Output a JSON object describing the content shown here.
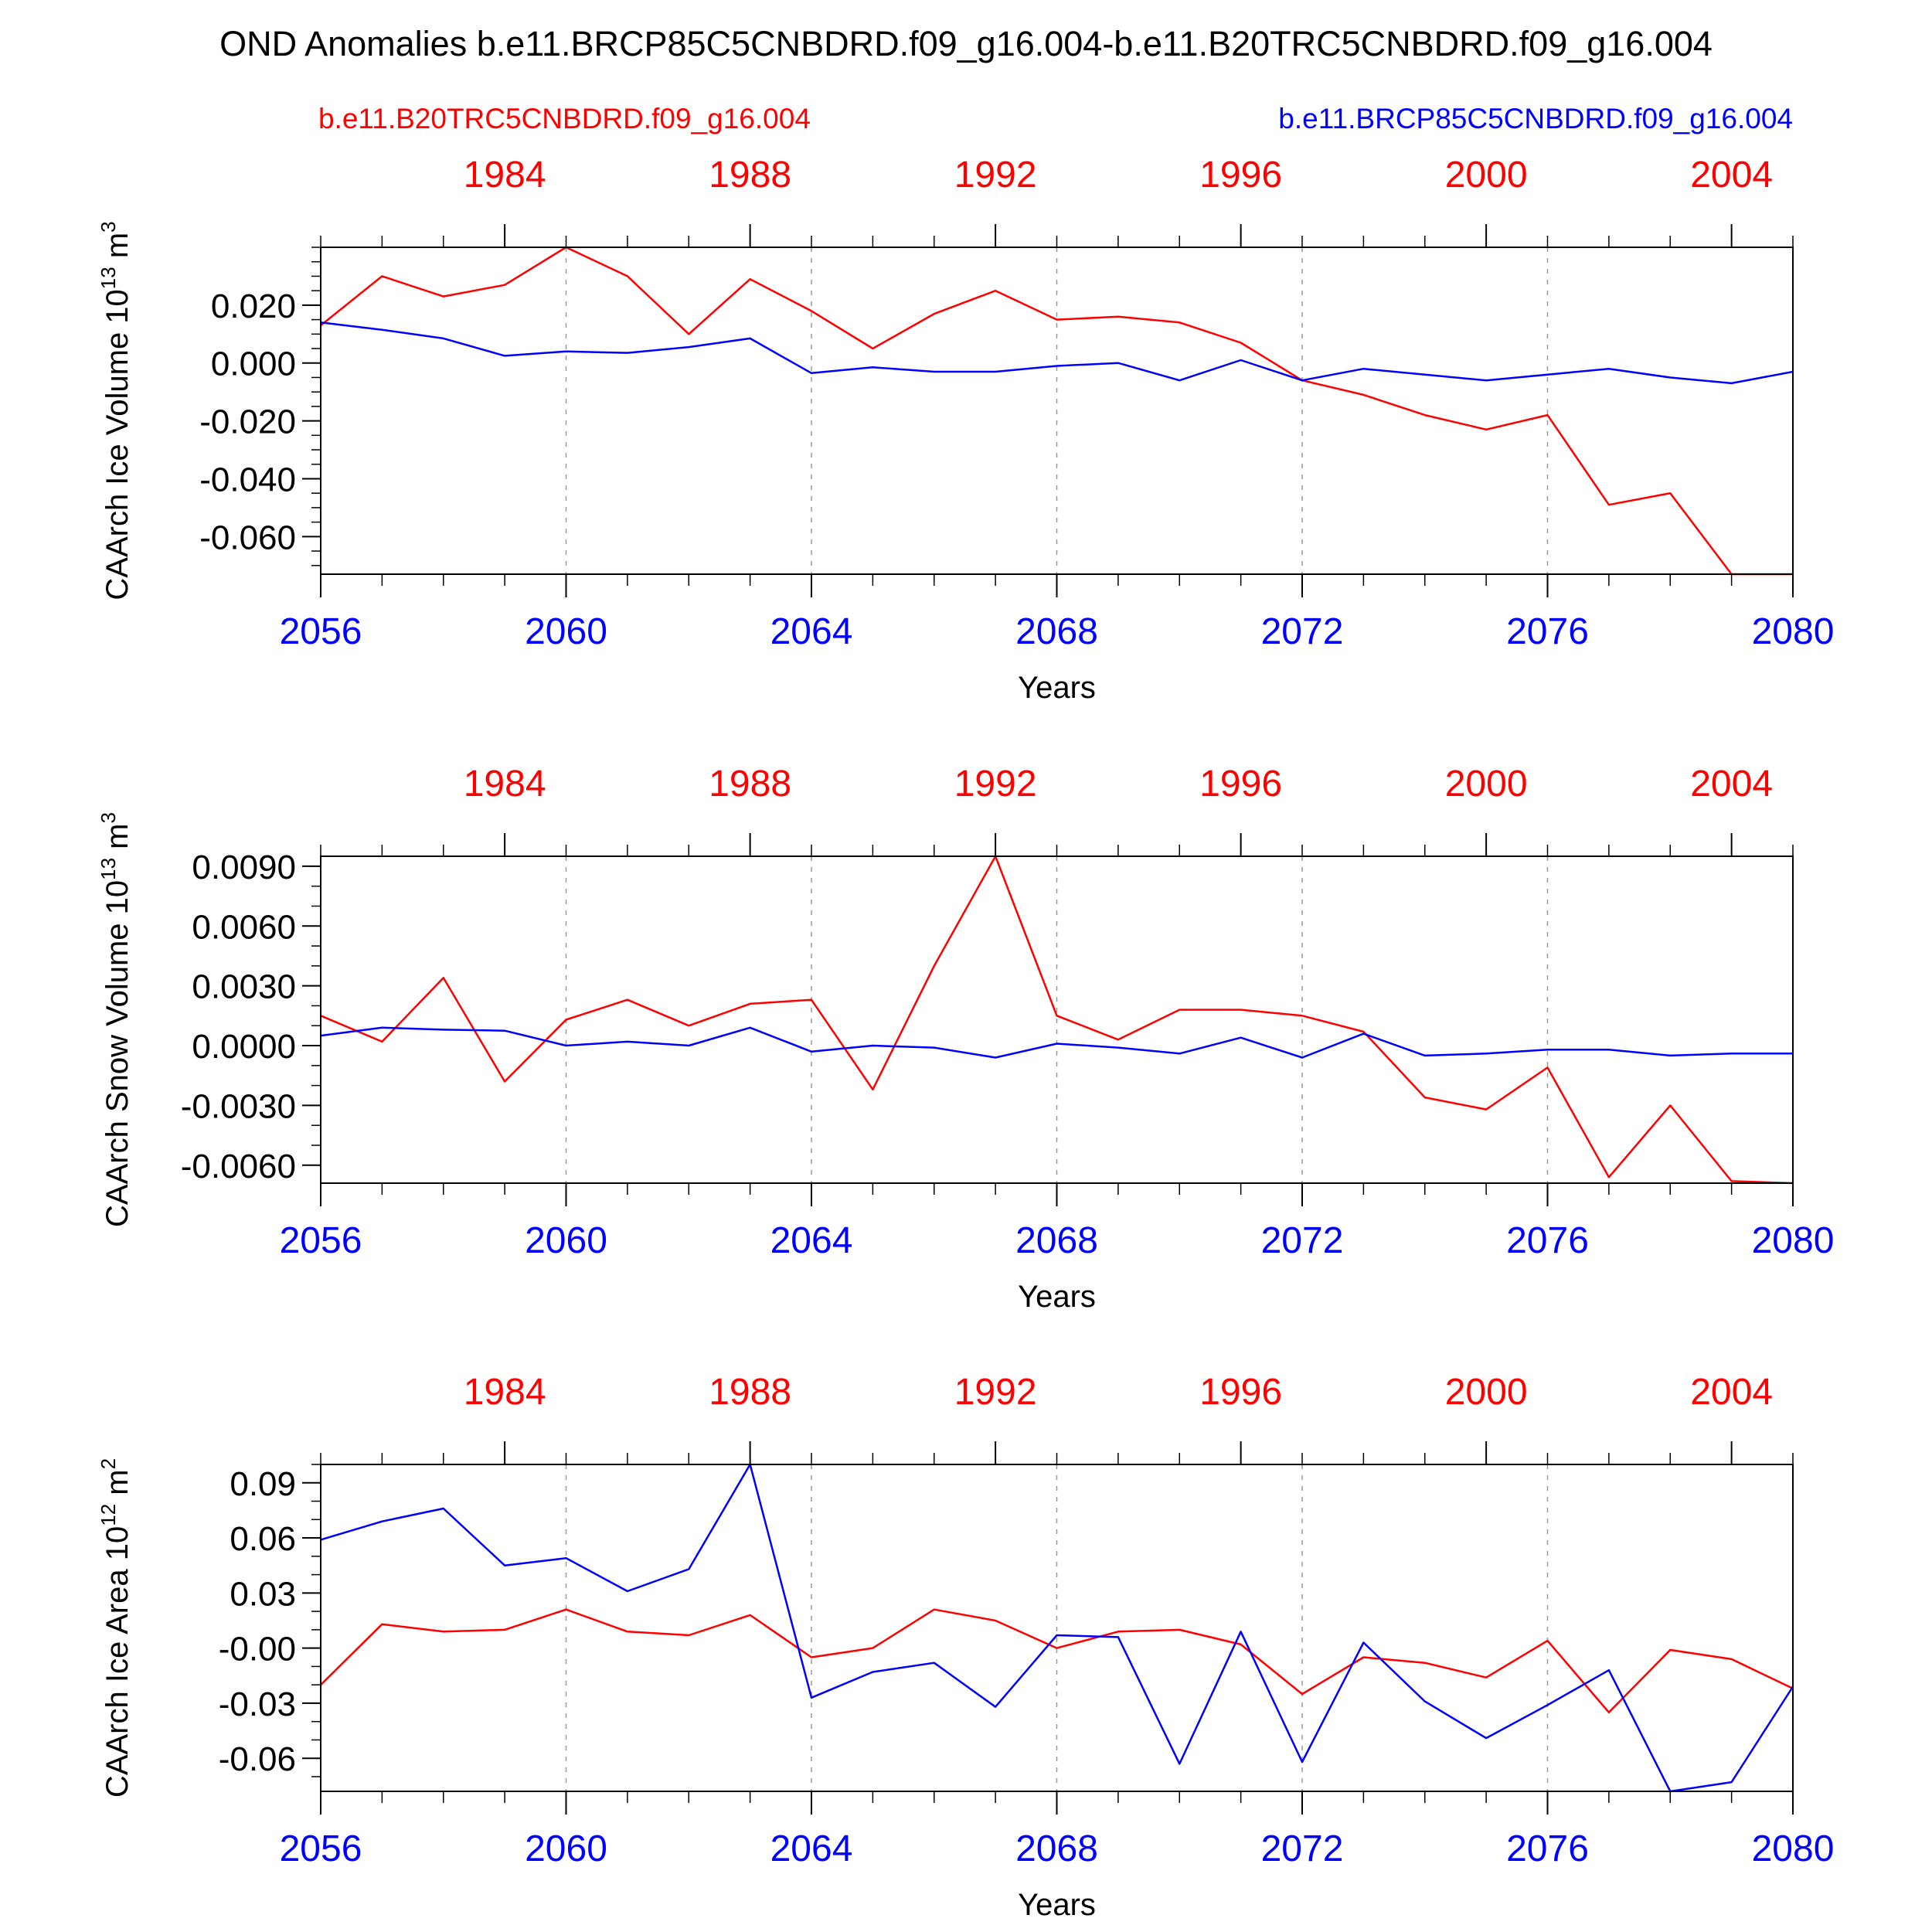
{
  "title": "OND Anomalies b.e11.BRCP85C5CNBDRD.f09_g16.004-b.e11.B20TRC5CNBDRD.f09_g16.004",
  "legend": {
    "left_label": "b.e11.B20TRC5CNBDRD.f09_g16.004",
    "right_label": "b.e11.BRCP85C5CNBDRD.f09_g16.004"
  },
  "colors": {
    "historical": "#ff0000",
    "future": "#0000ff",
    "axis": "#000000",
    "grid": "#999999"
  },
  "chart_data": [
    {
      "type": "line",
      "ylabel_main": "CAArch Ice Volume 10",
      "ylabel_exp": "13",
      "ylabel_unit": " m",
      "ylabel_unit_exp": "3",
      "xlabel": "Years",
      "xlim": [
        2056,
        2080
      ],
      "ylim": [
        -0.073,
        0.04
      ],
      "yticks": [
        0.02,
        0.0,
        -0.02,
        -0.04,
        -0.06
      ],
      "ytick_labels": [
        "0.020",
        "0.000",
        "-0.020",
        "-0.040",
        "-0.060"
      ],
      "ytick_minor": 0.005,
      "bottom_ticks": [
        2056,
        2060,
        2064,
        2068,
        2072,
        2076,
        2080
      ],
      "bottom_tick_labels": [
        "2056",
        "2060",
        "2064",
        "2068",
        "2072",
        "2076",
        "2080"
      ],
      "top_ticks": [
        2059,
        2063,
        2067,
        2071,
        2075,
        2079
      ],
      "top_tick_labels": [
        "1984",
        "1988",
        "1992",
        "1996",
        "2000",
        "2004"
      ],
      "x": [
        2056,
        2057,
        2058,
        2059,
        2060,
        2061,
        2062,
        2063,
        2064,
        2065,
        2066,
        2067,
        2068,
        2069,
        2070,
        2071,
        2072,
        2073,
        2074,
        2075,
        2076,
        2077,
        2078,
        2079,
        2080
      ],
      "series": [
        {
          "key": "historical",
          "values": [
            0.013,
            0.03,
            0.023,
            0.027,
            0.04,
            0.03,
            0.01,
            0.029,
            0.018,
            0.005,
            0.017,
            0.025,
            0.015,
            0.016,
            0.014,
            0.007,
            -0.006,
            -0.011,
            -0.018,
            -0.023,
            -0.018,
            -0.049,
            -0.045,
            -0.073,
            -0.073
          ]
        },
        {
          "key": "future",
          "values": [
            0.014,
            0.0115,
            0.0085,
            0.0025,
            0.004,
            0.0035,
            0.0055,
            0.0085,
            -0.0035,
            -0.0015,
            -0.003,
            -0.003,
            -0.001,
            0.0,
            -0.006,
            0.001,
            -0.006,
            -0.002,
            -0.004,
            -0.006,
            -0.004,
            -0.002,
            -0.005,
            -0.007,
            -0.003
          ]
        }
      ]
    },
    {
      "type": "line",
      "ylabel_main": "CAArch Snow Volume 10",
      "ylabel_exp": "13",
      "ylabel_unit": " m",
      "ylabel_unit_exp": "3",
      "xlabel": "Years",
      "xlim": [
        2056,
        2080
      ],
      "ylim": [
        -0.0069,
        0.0095
      ],
      "yticks": [
        0.009,
        0.006,
        0.003,
        0.0,
        -0.003,
        -0.006
      ],
      "ytick_labels": [
        "0.0090",
        "0.0060",
        "0.0030",
        "0.0000",
        "-0.0030",
        "-0.0060"
      ],
      "ytick_minor": 0.001,
      "bottom_ticks": [
        2056,
        2060,
        2064,
        2068,
        2072,
        2076,
        2080
      ],
      "bottom_tick_labels": [
        "2056",
        "2060",
        "2064",
        "2068",
        "2072",
        "2076",
        "2080"
      ],
      "top_ticks": [
        2059,
        2063,
        2067,
        2071,
        2075,
        2079
      ],
      "top_tick_labels": [
        "1984",
        "1988",
        "1992",
        "1996",
        "2000",
        "2004"
      ],
      "x": [
        2056,
        2057,
        2058,
        2059,
        2060,
        2061,
        2062,
        2063,
        2064,
        2065,
        2066,
        2067,
        2068,
        2069,
        2070,
        2071,
        2072,
        2073,
        2074,
        2075,
        2076,
        2077,
        2078,
        2079,
        2080
      ],
      "series": [
        {
          "key": "historical",
          "values": [
            0.0015,
            0.0002,
            0.0034,
            -0.0018,
            0.0013,
            0.0023,
            0.001,
            0.0021,
            0.0023,
            -0.0022,
            0.004,
            0.0095,
            0.0015,
            0.0003,
            0.0018,
            0.0018,
            0.0015,
            0.0007,
            -0.0026,
            -0.0032,
            -0.0011,
            -0.0066,
            -0.003,
            -0.0068,
            -0.0069
          ]
        },
        {
          "key": "future",
          "values": [
            0.0005,
            0.0009,
            0.0008,
            0.00075,
            0.0,
            0.0002,
            0.0,
            0.0009,
            -0.0003,
            0.0,
            -0.0001,
            -0.0006,
            0.0001,
            -0.0001,
            -0.0004,
            0.0004,
            -0.0006,
            0.0006,
            -0.0005,
            -0.0004,
            -0.0002,
            -0.0002,
            -0.0005,
            -0.0004,
            -0.0004
          ]
        }
      ]
    },
    {
      "type": "line",
      "ylabel_main": "CAArch Ice Area 10",
      "ylabel_exp": "12",
      "ylabel_unit": " m",
      "ylabel_unit_exp": "2",
      "xlabel": "Years",
      "xlim": [
        2056,
        2080
      ],
      "ylim": [
        -0.078,
        0.1
      ],
      "yticks": [
        0.09,
        0.06,
        0.03,
        0.0,
        -0.03,
        -0.06
      ],
      "ytick_labels": [
        "0.09",
        "0.06",
        "0.03",
        "-0.00",
        "-0.03",
        "-0.06"
      ],
      "ytick_minor": 0.01,
      "bottom_ticks": [
        2056,
        2060,
        2064,
        2068,
        2072,
        2076,
        2080
      ],
      "bottom_tick_labels": [
        "2056",
        "2060",
        "2064",
        "2068",
        "2072",
        "2076",
        "2080"
      ],
      "top_ticks": [
        2059,
        2063,
        2067,
        2071,
        2075,
        2079
      ],
      "top_tick_labels": [
        "1984",
        "1988",
        "1992",
        "1996",
        "2000",
        "2004"
      ],
      "x": [
        2056,
        2057,
        2058,
        2059,
        2060,
        2061,
        2062,
        2063,
        2064,
        2065,
        2066,
        2067,
        2068,
        2069,
        2070,
        2071,
        2072,
        2073,
        2074,
        2075,
        2076,
        2077,
        2078,
        2079,
        2080
      ],
      "series": [
        {
          "key": "historical",
          "values": [
            -0.02,
            0.013,
            0.009,
            0.01,
            0.021,
            0.009,
            0.007,
            0.018,
            -0.005,
            0.0,
            0.021,
            0.015,
            0.0,
            0.009,
            0.01,
            0.002,
            -0.025,
            -0.005,
            -0.008,
            -0.016,
            0.004,
            -0.035,
            -0.001,
            -0.006,
            -0.022
          ]
        },
        {
          "key": "future",
          "values": [
            0.059,
            0.069,
            0.076,
            0.045,
            0.049,
            0.031,
            0.043,
            0.1,
            -0.027,
            -0.013,
            -0.008,
            -0.032,
            0.007,
            0.006,
            -0.063,
            0.009,
            -0.062,
            0.003,
            -0.029,
            -0.049,
            -0.031,
            -0.012,
            -0.078,
            -0.073,
            -0.021
          ]
        }
      ]
    }
  ]
}
